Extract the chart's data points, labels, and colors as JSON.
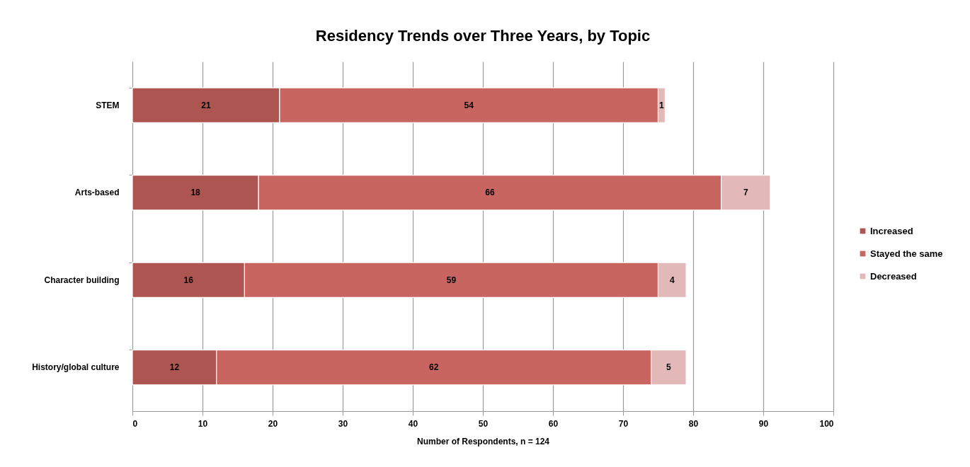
{
  "chart_data": {
    "type": "bar",
    "orientation": "horizontal",
    "stacked": true,
    "title": "Residency Trends over Three Years, by Topic",
    "xlabel": "Number of Respondents, n = 124",
    "categories": [
      "STEM",
      "Arts-based",
      "Character building",
      "History/global culture"
    ],
    "series": [
      {
        "name": "Increased",
        "color": "#ad5651",
        "values": [
          21,
          18,
          16,
          12
        ]
      },
      {
        "name": "Stayed the same",
        "color": "#c96560",
        "values": [
          54,
          66,
          59,
          62
        ]
      },
      {
        "name": "Decreased",
        "color": "#e2b8b8",
        "values": [
          1,
          7,
          4,
          5
        ]
      }
    ],
    "xlim": [
      0,
      100
    ],
    "xticks": [
      0,
      10,
      20,
      30,
      40,
      50,
      60,
      70,
      80,
      90,
      100
    ],
    "grid": "x",
    "legend": "right",
    "data_labels": true
  }
}
